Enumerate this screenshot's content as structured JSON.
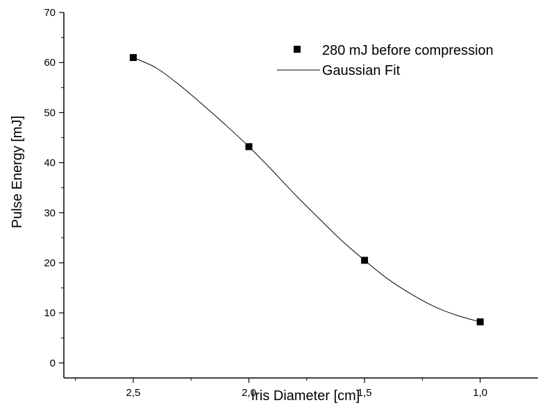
{
  "chart_data": {
    "type": "scatter",
    "xlabel": "Iris Diameter [cm]",
    "ylabel": "Pulse Energy [mJ]",
    "xlim": [
      2.8,
      0.75
    ],
    "ylim": [
      -3,
      70
    ],
    "x_reversed": true,
    "x_ticks": [
      2.5,
      2.0,
      1.5,
      1.0
    ],
    "x_tick_labels": [
      "2,5",
      "2,0",
      "1,5",
      "1,0"
    ],
    "y_ticks": [
      0,
      10,
      20,
      30,
      40,
      50,
      60,
      70
    ],
    "y_tick_labels": [
      "0",
      "10",
      "20",
      "30",
      "40",
      "50",
      "60",
      "70"
    ],
    "grid": false,
    "legend_position": "top-right",
    "series": [
      {
        "name": "280 mJ before compression",
        "kind": "scatter",
        "marker": "square",
        "color": "#000000",
        "x": [
          2.5,
          2.0,
          1.5,
          1.0
        ],
        "y": [
          61.0,
          43.2,
          20.5,
          8.2
        ]
      },
      {
        "name": "Gaussian Fit",
        "kind": "line",
        "color": "#000000",
        "x": [
          2.5,
          2.4,
          2.3,
          2.2,
          2.1,
          2.0,
          1.9,
          1.8,
          1.7,
          1.6,
          1.5,
          1.4,
          1.3,
          1.2,
          1.1,
          1.0
        ],
        "y": [
          61.0,
          58.9,
          55.5,
          51.6,
          47.5,
          43.2,
          38.5,
          33.6,
          29.0,
          24.5,
          20.5,
          16.8,
          13.8,
          11.3,
          9.5,
          8.2
        ]
      }
    ]
  }
}
